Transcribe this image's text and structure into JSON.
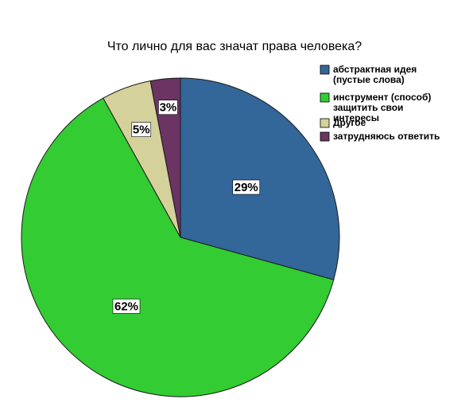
{
  "chart_data": {
    "type": "pie",
    "title": "Что лично для вас значат права человека?",
    "categories": [
      "абстрактная идея (пустые слова)",
      "инструмент (способ) защитить свои интересы",
      "Другое",
      "затрудняюсь ответить"
    ],
    "values": [
      29,
      62,
      5,
      3
    ],
    "labels": [
      "29%",
      "62%",
      "5%",
      "3%"
    ],
    "colors": [
      "#336699",
      "#33cc33",
      "#d4d19a",
      "#6b3463"
    ],
    "legend_lines": [
      [
        "абстрактная идея",
        "(пустые слова)"
      ],
      [
        "инструмент (способ)",
        "защитить свои",
        "интересы"
      ],
      [
        "Другое"
      ],
      [
        "затрудняюсь ответить"
      ]
    ],
    "legend_position": "right",
    "start": "top",
    "direction": "clockwise"
  }
}
